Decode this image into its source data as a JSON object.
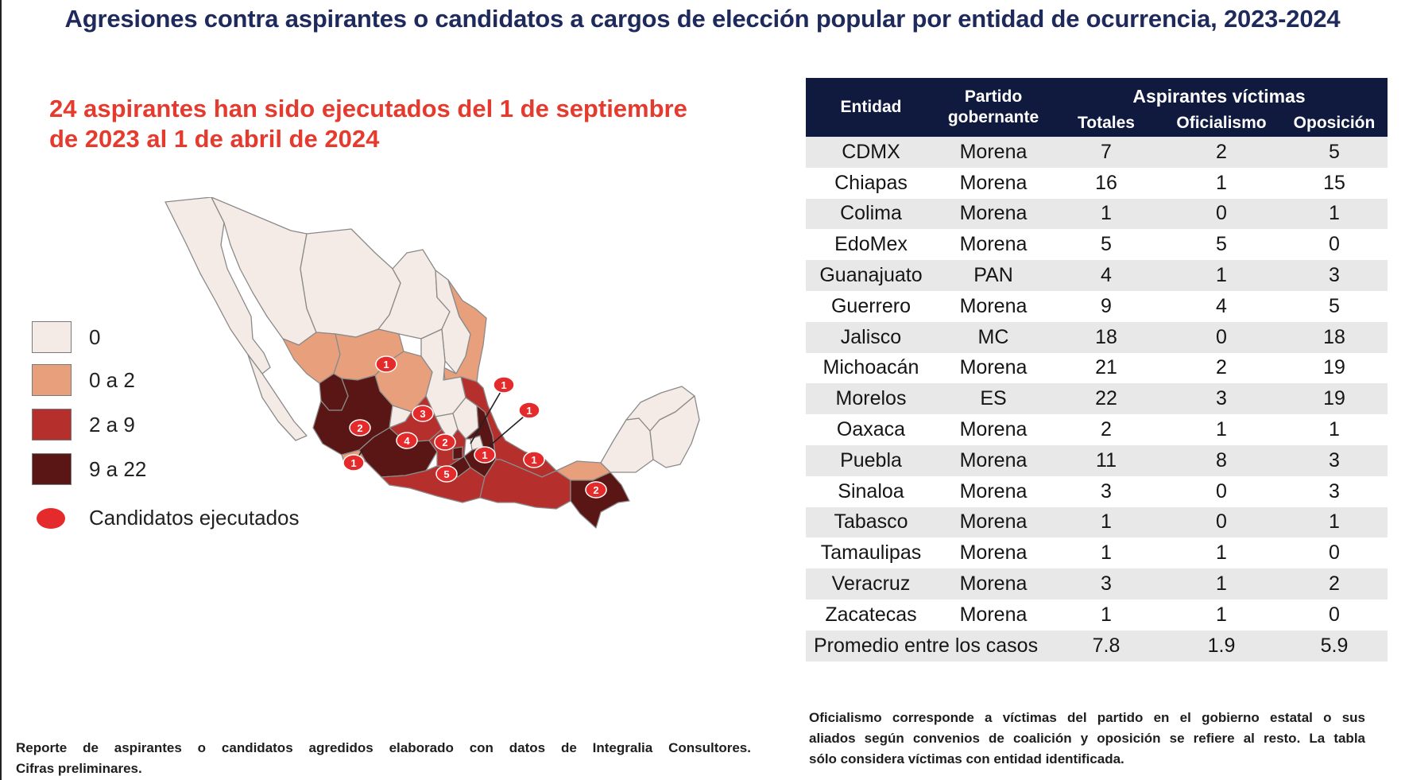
{
  "title": "Agresiones contra aspirantes o candidatos a cargos de elección popular por entidad de ocurrencia, 2023-2024",
  "headline": {
    "line1": "24 aspirantes han sido ejecutados del 1 de septiembre",
    "line2": "de 2023 al 1 de abril de 2024"
  },
  "colors": {
    "title": "#1f2a5c",
    "headline": "#e53b2f",
    "header_bg": "#101a3e",
    "level_0": "#f5ebe6",
    "level_0_2": "#e8a07c",
    "level_2_9": "#b5302c",
    "level_9_22": "#5a1515",
    "marker": "#e42a2a"
  },
  "legend": {
    "items": [
      {
        "label": "0",
        "color": "#f5ebe6"
      },
      {
        "label": "0 a 2",
        "color": "#e8a07c"
      },
      {
        "label": "2 a 9",
        "color": "#b5302c"
      },
      {
        "label": "9 a 22",
        "color": "#5a1515"
      }
    ],
    "marker_label": "Candidatos ejecutados"
  },
  "map_markers": [
    "1",
    "1",
    "1",
    "3",
    "2",
    "4",
    "2",
    "1",
    "1",
    "1",
    "5",
    "2"
  ],
  "table": {
    "headers": {
      "entidad": "Entidad",
      "partido": "Partido gobernante",
      "group": "Aspirantes víctimas",
      "totales": "Totales",
      "oficialismo": "Oficialismo",
      "oposicion": "Oposición"
    },
    "rows": [
      [
        "CDMX",
        "Morena",
        "7",
        "2",
        "5"
      ],
      [
        "Chiapas",
        "Morena",
        "16",
        "1",
        "15"
      ],
      [
        "Colima",
        "Morena",
        "1",
        "0",
        "1"
      ],
      [
        "EdoMex",
        "Morena",
        "5",
        "5",
        "0"
      ],
      [
        "Guanajuato",
        "PAN",
        "4",
        "1",
        "3"
      ],
      [
        "Guerrero",
        "Morena",
        "9",
        "4",
        "5"
      ],
      [
        "Jalisco",
        "MC",
        "18",
        "0",
        "18"
      ],
      [
        "Michoacán",
        "Morena",
        "21",
        "2",
        "19"
      ],
      [
        "Morelos",
        "ES",
        "22",
        "3",
        "19"
      ],
      [
        "Oaxaca",
        "Morena",
        "2",
        "1",
        "1"
      ],
      [
        "Puebla",
        "Morena",
        "11",
        "8",
        "3"
      ],
      [
        "Sinaloa",
        "Morena",
        "3",
        "0",
        "3"
      ],
      [
        "Tabasco",
        "Morena",
        "1",
        "0",
        "1"
      ],
      [
        "Tamaulipas",
        "Morena",
        "1",
        "1",
        "0"
      ],
      [
        "Veracruz",
        "Morena",
        "3",
        "1",
        "2"
      ],
      [
        "Zacatecas",
        "Morena",
        "1",
        "1",
        "0"
      ]
    ],
    "average": {
      "label": "Promedio entre los casos",
      "totales": "7.8",
      "oficialismo": "1.9",
      "oposicion": "5.9"
    }
  },
  "footer_left": {
    "line1": "Reporte de aspirantes o candidatos agredidos elaborado con datos de Integralia Consultores.",
    "line2": "Cifras preliminares."
  },
  "footer_right": {
    "line1": "Oficialismo corresponde a víctimas del partido en el gobierno estatal o sus",
    "line2": "aliados según convenios de coalición y oposición se refiere al resto.  La tabla",
    "line3": "sólo considera víctimas con entidad identificada."
  }
}
